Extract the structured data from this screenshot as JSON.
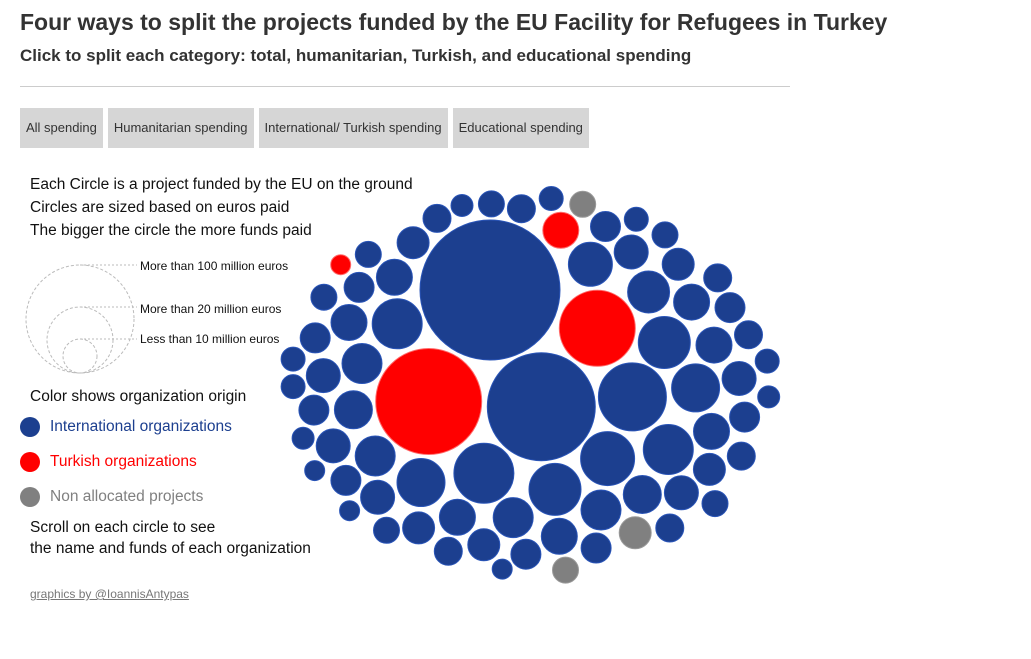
{
  "header": {
    "title": "Four ways to split the projects funded by the EU Facility for Refugees in Turkey",
    "subtitle": "Click to split each category: total, humanitarian, Turkish, and educational spending"
  },
  "buttons": [
    {
      "label": "All spending"
    },
    {
      "label": "Humanitarian spending"
    },
    {
      "label": "International/ Turkish spending"
    },
    {
      "label": "Educational spending"
    }
  ],
  "intro": {
    "line1": "Each Circle is a project funded by the EU on the ground",
    "line2": "Circles are sized based on euros paid",
    "line3": "The bigger the circle the more funds paid"
  },
  "size_legend": {
    "large": "More than 100 million euros",
    "medium": "More than 20 million euros",
    "small": "Less than 10 million euros"
  },
  "color_legend": {
    "title": "Color shows organization origin",
    "items": [
      {
        "label": "International organizations",
        "color": "#1c3f8f",
        "key": "intl"
      },
      {
        "label": "Turkish organizations",
        "color": "#ff0000",
        "key": "turk"
      },
      {
        "label": "Non allocated projects",
        "color": "#808080",
        "key": "none"
      }
    ]
  },
  "scroll_note": {
    "line1": "Scroll on each circle to see",
    "line2": "the name and funds of each organization"
  },
  "credit": "graphics by @IoannisAntypas",
  "chart_data": {
    "type": "bubble",
    "encoding": "circle area proportional to euros paid; color = organization origin",
    "categories": {
      "intl": "International organizations",
      "turk": "Turkish organizations",
      "none": "Non allocated projects"
    },
    "colors": {
      "intl": "#1c3f8f",
      "turk": "#ff0000",
      "none": "#808080"
    },
    "circles": [
      {
        "cat": "intl",
        "r": 70
      },
      {
        "cat": "intl",
        "r": 54
      },
      {
        "cat": "turk",
        "r": 53
      },
      {
        "cat": "turk",
        "r": 38
      },
      {
        "cat": "intl",
        "r": 34
      },
      {
        "cat": "intl",
        "r": 30
      },
      {
        "cat": "intl",
        "r": 27
      },
      {
        "cat": "intl",
        "r": 26
      },
      {
        "cat": "intl",
        "r": 26
      },
      {
        "cat": "intl",
        "r": 25
      },
      {
        "cat": "intl",
        "r": 25
      },
      {
        "cat": "intl",
        "r": 24
      },
      {
        "cat": "intl",
        "r": 24
      },
      {
        "cat": "intl",
        "r": 22
      },
      {
        "cat": "intl",
        "r": 21
      },
      {
        "cat": "intl",
        "r": 20
      },
      {
        "cat": "intl",
        "r": 20
      },
      {
        "cat": "intl",
        "r": 20
      },
      {
        "cat": "intl",
        "r": 20
      },
      {
        "cat": "intl",
        "r": 19
      },
      {
        "cat": "intl",
        "r": 19
      },
      {
        "cat": "intl",
        "r": 18
      },
      {
        "cat": "intl",
        "r": 18
      },
      {
        "cat": "intl",
        "r": 18
      },
      {
        "cat": "intl",
        "r": 18
      },
      {
        "cat": "intl",
        "r": 18
      },
      {
        "cat": "intl",
        "r": 18
      },
      {
        "cat": "intl",
        "r": 18
      },
      {
        "cat": "intl",
        "r": 17
      },
      {
        "cat": "intl",
        "r": 17
      },
      {
        "cat": "intl",
        "r": 17
      },
      {
        "cat": "intl",
        "r": 17
      },
      {
        "cat": "intl",
        "r": 17
      },
      {
        "cat": "intl",
        "r": 17
      },
      {
        "cat": "turk",
        "r": 18
      },
      {
        "cat": "intl",
        "r": 16
      },
      {
        "cat": "intl",
        "r": 16
      },
      {
        "cat": "intl",
        "r": 16
      },
      {
        "cat": "intl",
        "r": 16
      },
      {
        "cat": "intl",
        "r": 16
      },
      {
        "cat": "intl",
        "r": 15
      },
      {
        "cat": "intl",
        "r": 15
      },
      {
        "cat": "intl",
        "r": 15
      },
      {
        "cat": "intl",
        "r": 15
      },
      {
        "cat": "intl",
        "r": 15
      },
      {
        "cat": "intl",
        "r": 15
      },
      {
        "cat": "intl",
        "r": 15
      },
      {
        "cat": "intl",
        "r": 15
      },
      {
        "cat": "intl",
        "r": 15
      },
      {
        "cat": "intl",
        "r": 14
      },
      {
        "cat": "intl",
        "r": 14
      },
      {
        "cat": "intl",
        "r": 14
      },
      {
        "cat": "intl",
        "r": 14
      },
      {
        "cat": "intl",
        "r": 14
      },
      {
        "cat": "intl",
        "r": 14
      },
      {
        "cat": "intl",
        "r": 14
      },
      {
        "cat": "intl",
        "r": 13
      },
      {
        "cat": "intl",
        "r": 13
      },
      {
        "cat": "intl",
        "r": 13
      },
      {
        "cat": "intl",
        "r": 13
      },
      {
        "cat": "intl",
        "r": 13
      },
      {
        "cat": "intl",
        "r": 13
      },
      {
        "cat": "none",
        "r": 16
      },
      {
        "cat": "none",
        "r": 13
      },
      {
        "cat": "none",
        "r": 13
      },
      {
        "cat": "intl",
        "r": 12
      },
      {
        "cat": "intl",
        "r": 12
      },
      {
        "cat": "intl",
        "r": 12
      },
      {
        "cat": "intl",
        "r": 12
      },
      {
        "cat": "intl",
        "r": 12
      },
      {
        "cat": "intl",
        "r": 11
      },
      {
        "cat": "intl",
        "r": 11
      },
      {
        "cat": "intl",
        "r": 11
      },
      {
        "cat": "intl",
        "r": 10
      },
      {
        "cat": "intl",
        "r": 10
      },
      {
        "cat": "intl",
        "r": 10
      },
      {
        "cat": "turk",
        "r": 10
      }
    ]
  }
}
